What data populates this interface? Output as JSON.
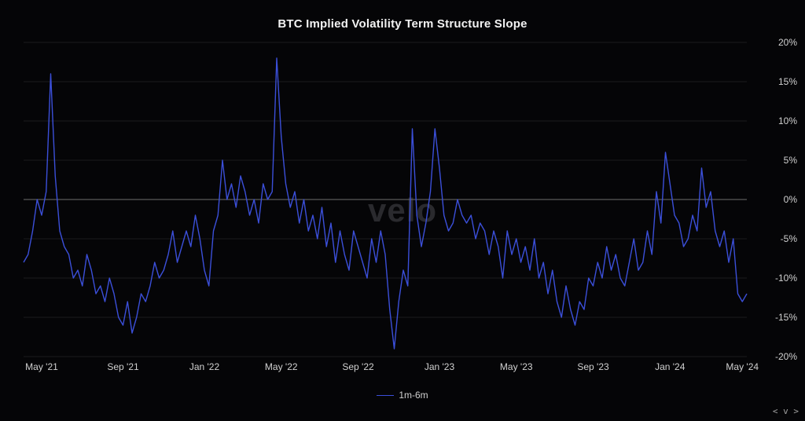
{
  "title": "BTC Implied Volatility Term Structure Slope",
  "watermark_text": "velo",
  "badge_text": "< v >",
  "background_color": "#050507",
  "title_color": "#f2f2f2",
  "title_fontsize": 15,
  "label_color": "#d0d0d0",
  "label_fontsize": 12,
  "zero_line_color": "#6e6e6e",
  "grid_line_color": "#1a1a1d",
  "y_axis": {
    "min": -20,
    "max": 20,
    "tick_step": 5,
    "tick_format_suffix": "%"
  },
  "x_axis": {
    "domain_min": 0,
    "domain_max": 160,
    "ticks": [
      {
        "pos": 4,
        "label": "May '21"
      },
      {
        "pos": 22,
        "label": "Sep '21"
      },
      {
        "pos": 40,
        "label": "Jan '22"
      },
      {
        "pos": 57,
        "label": "May '22"
      },
      {
        "pos": 74,
        "label": "Sep '22"
      },
      {
        "pos": 92,
        "label": "Jan '23"
      },
      {
        "pos": 109,
        "label": "May '23"
      },
      {
        "pos": 126,
        "label": "Sep '23"
      },
      {
        "pos": 143,
        "label": "Jan '24"
      },
      {
        "pos": 159,
        "label": "May '24"
      }
    ]
  },
  "series": [
    {
      "name": "1m-6m",
      "color": "#3b4fd9",
      "line_width": 1.4,
      "values": [
        -8,
        -7,
        -4,
        0,
        -2,
        1,
        16,
        3,
        -4,
        -6,
        -7,
        -10,
        -9,
        -11,
        -7,
        -9,
        -12,
        -11,
        -13,
        -10,
        -12,
        -15,
        -16,
        -13,
        -17,
        -15,
        -12,
        -13,
        -11,
        -8,
        -10,
        -9,
        -7,
        -4,
        -8,
        -6,
        -4,
        -6,
        -2,
        -5,
        -9,
        -11,
        -4,
        -2,
        5,
        0,
        2,
        -1,
        3,
        1,
        -2,
        0,
        -3,
        2,
        0,
        1,
        18,
        8,
        2,
        -1,
        1,
        -3,
        0,
        -4,
        -2,
        -5,
        -1,
        -6,
        -3,
        -8,
        -4,
        -7,
        -9,
        -4,
        -6,
        -8,
        -10,
        -5,
        -8,
        -4,
        -7,
        -14,
        -19,
        -13,
        -9,
        -11,
        9,
        -2,
        -6,
        -3,
        1,
        9,
        4,
        -2,
        -4,
        -3,
        0,
        -2,
        -3,
        -2,
        -5,
        -3,
        -4,
        -7,
        -4,
        -6,
        -10,
        -4,
        -7,
        -5,
        -8,
        -6,
        -9,
        -5,
        -10,
        -8,
        -12,
        -9,
        -13,
        -15,
        -11,
        -14,
        -16,
        -13,
        -14,
        -10,
        -11,
        -8,
        -10,
        -6,
        -9,
        -7,
        -10,
        -11,
        -8,
        -5,
        -9,
        -8,
        -4,
        -7,
        1,
        -3,
        6,
        2,
        -2,
        -3,
        -6,
        -5,
        -2,
        -4,
        4,
        -1,
        1,
        -4,
        -6,
        -4,
        -8,
        -5,
        -12,
        -13,
        -12
      ]
    }
  ],
  "legend": {
    "label": "1m-6m"
  }
}
